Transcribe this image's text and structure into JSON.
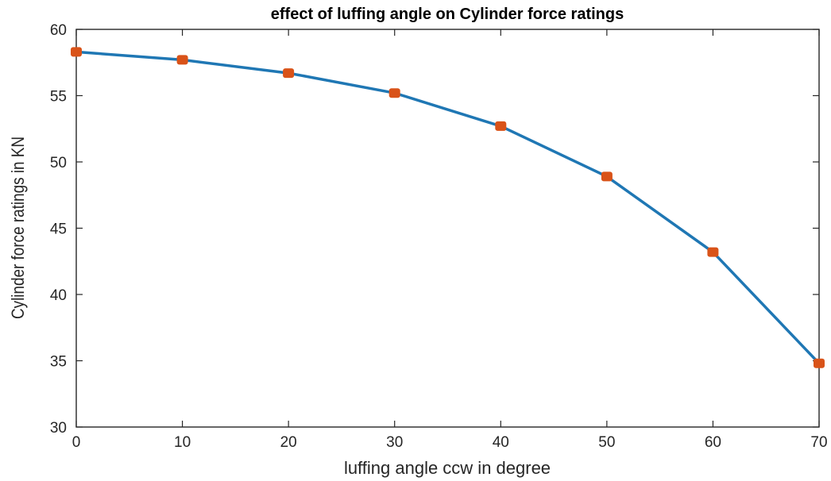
{
  "chart_data": {
    "type": "line",
    "title": "effect of luffing angle on Cylinder force ratings",
    "xlabel": "luffing angle ccw in degree",
    "ylabel": "Cylinder force ratings in KN",
    "x": [
      0,
      10,
      20,
      30,
      40,
      50,
      60,
      70
    ],
    "series": [
      {
        "values": [
          58.3,
          57.7,
          56.7,
          55.2,
          52.7,
          48.9,
          43.2,
          34.8
        ]
      }
    ],
    "xlim": [
      0,
      70
    ],
    "ylim": [
      30,
      60
    ],
    "xticks": [
      "0",
      "10",
      "20",
      "30",
      "40",
      "50",
      "60",
      "70"
    ],
    "yticks": [
      "30",
      "35",
      "40",
      "45",
      "50",
      "55",
      "60"
    ],
    "grid": false,
    "legend": "none",
    "colors": {
      "line": "#1f77b4",
      "marker": "#d95319",
      "axis": "#262626"
    }
  }
}
